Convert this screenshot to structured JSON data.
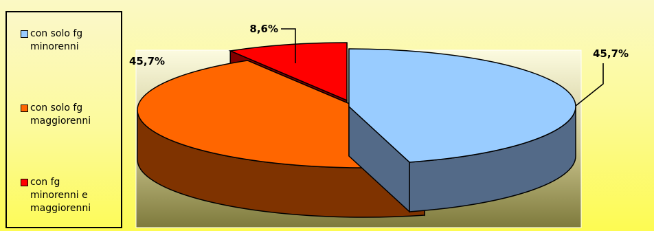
{
  "chart_data": {
    "type": "pie",
    "style": "3d-exploded",
    "legend_position": "left",
    "slices": [
      {
        "label": "con solo fg minorenni",
        "value": 45.7,
        "value_label": "45,7%",
        "color": "#99ccff",
        "side_color": "#536a88"
      },
      {
        "label": "con solo fg maggiorenni",
        "value": 45.7,
        "value_label": "45,7%",
        "color": "#ff6600",
        "side_color": "#7f3300"
      },
      {
        "label": "con fg minorenni e maggiorenni",
        "value": 8.6,
        "value_label": "8,6%",
        "color": "#ff0000",
        "side_color": "#800000"
      }
    ]
  },
  "legend": {
    "items": [
      {
        "lines": [
          "con solo fg",
          "minorenni"
        ]
      },
      {
        "lines": [
          "con solo fg",
          "maggiorenni"
        ]
      },
      {
        "lines": [
          "con fg",
          "minorenni e",
          "maggiorenni"
        ]
      }
    ]
  }
}
